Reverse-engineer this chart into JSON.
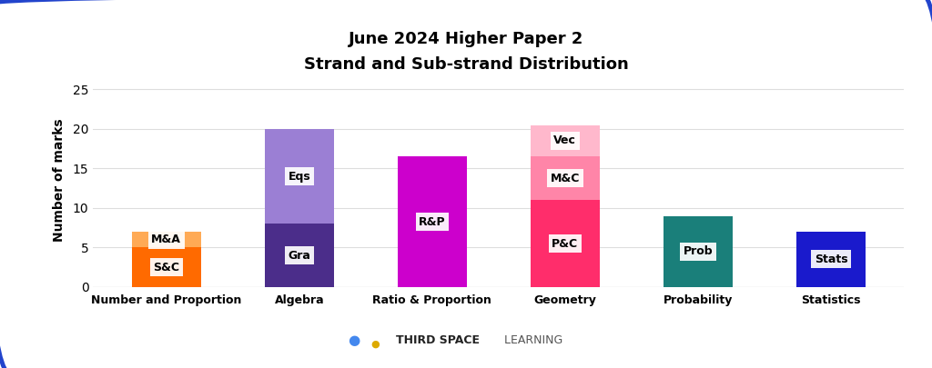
{
  "title_line1": "June 2024 Higher Paper 2",
  "title_line2": "Strand and Sub-strand Distribution",
  "ylabel": "Number of marks",
  "categories": [
    "Number and Proportion",
    "Algebra",
    "Ratio & Proportion",
    "Geometry",
    "Probability",
    "Statistics"
  ],
  "segments": [
    [
      {
        "label": "S&C",
        "value": 5,
        "color": "#FF6A00"
      },
      {
        "label": "M&A",
        "value": 2,
        "color": "#FFAA55"
      }
    ],
    [
      {
        "label": "Gra",
        "value": 8,
        "color": "#4B2D8A"
      },
      {
        "label": "Eqs",
        "value": 12,
        "color": "#9B7FD4"
      }
    ],
    [
      {
        "label": "R&P",
        "value": 16.5,
        "color": "#CC00CC"
      }
    ],
    [
      {
        "label": "P&C",
        "value": 11,
        "color": "#FF2D6B"
      },
      {
        "label": "M&C",
        "value": 5.5,
        "color": "#FF85A8"
      },
      {
        "label": "Vec",
        "value": 4,
        "color": "#FFB8CC"
      }
    ],
    [
      {
        "label": "Prob",
        "value": 9,
        "color": "#1A7F7A"
      }
    ],
    [
      {
        "label": "Stats",
        "value": 7,
        "color": "#1A1ACC"
      }
    ]
  ],
  "ylim": [
    0,
    27
  ],
  "yticks": [
    0,
    5,
    10,
    15,
    20,
    25
  ],
  "background_color": "#FFFFFF",
  "border_color": "#2244CC",
  "grid_color": "#DDDDDD",
  "label_fontsize": 9,
  "title_fontsize": 13,
  "axis_label_fontsize": 10,
  "bar_width": 0.52,
  "tsl_blue": "#4499FF",
  "tsl_yellow": "#FFCC00",
  "tsl_text_bold": "#222222",
  "tsl_text_light": "#555555"
}
